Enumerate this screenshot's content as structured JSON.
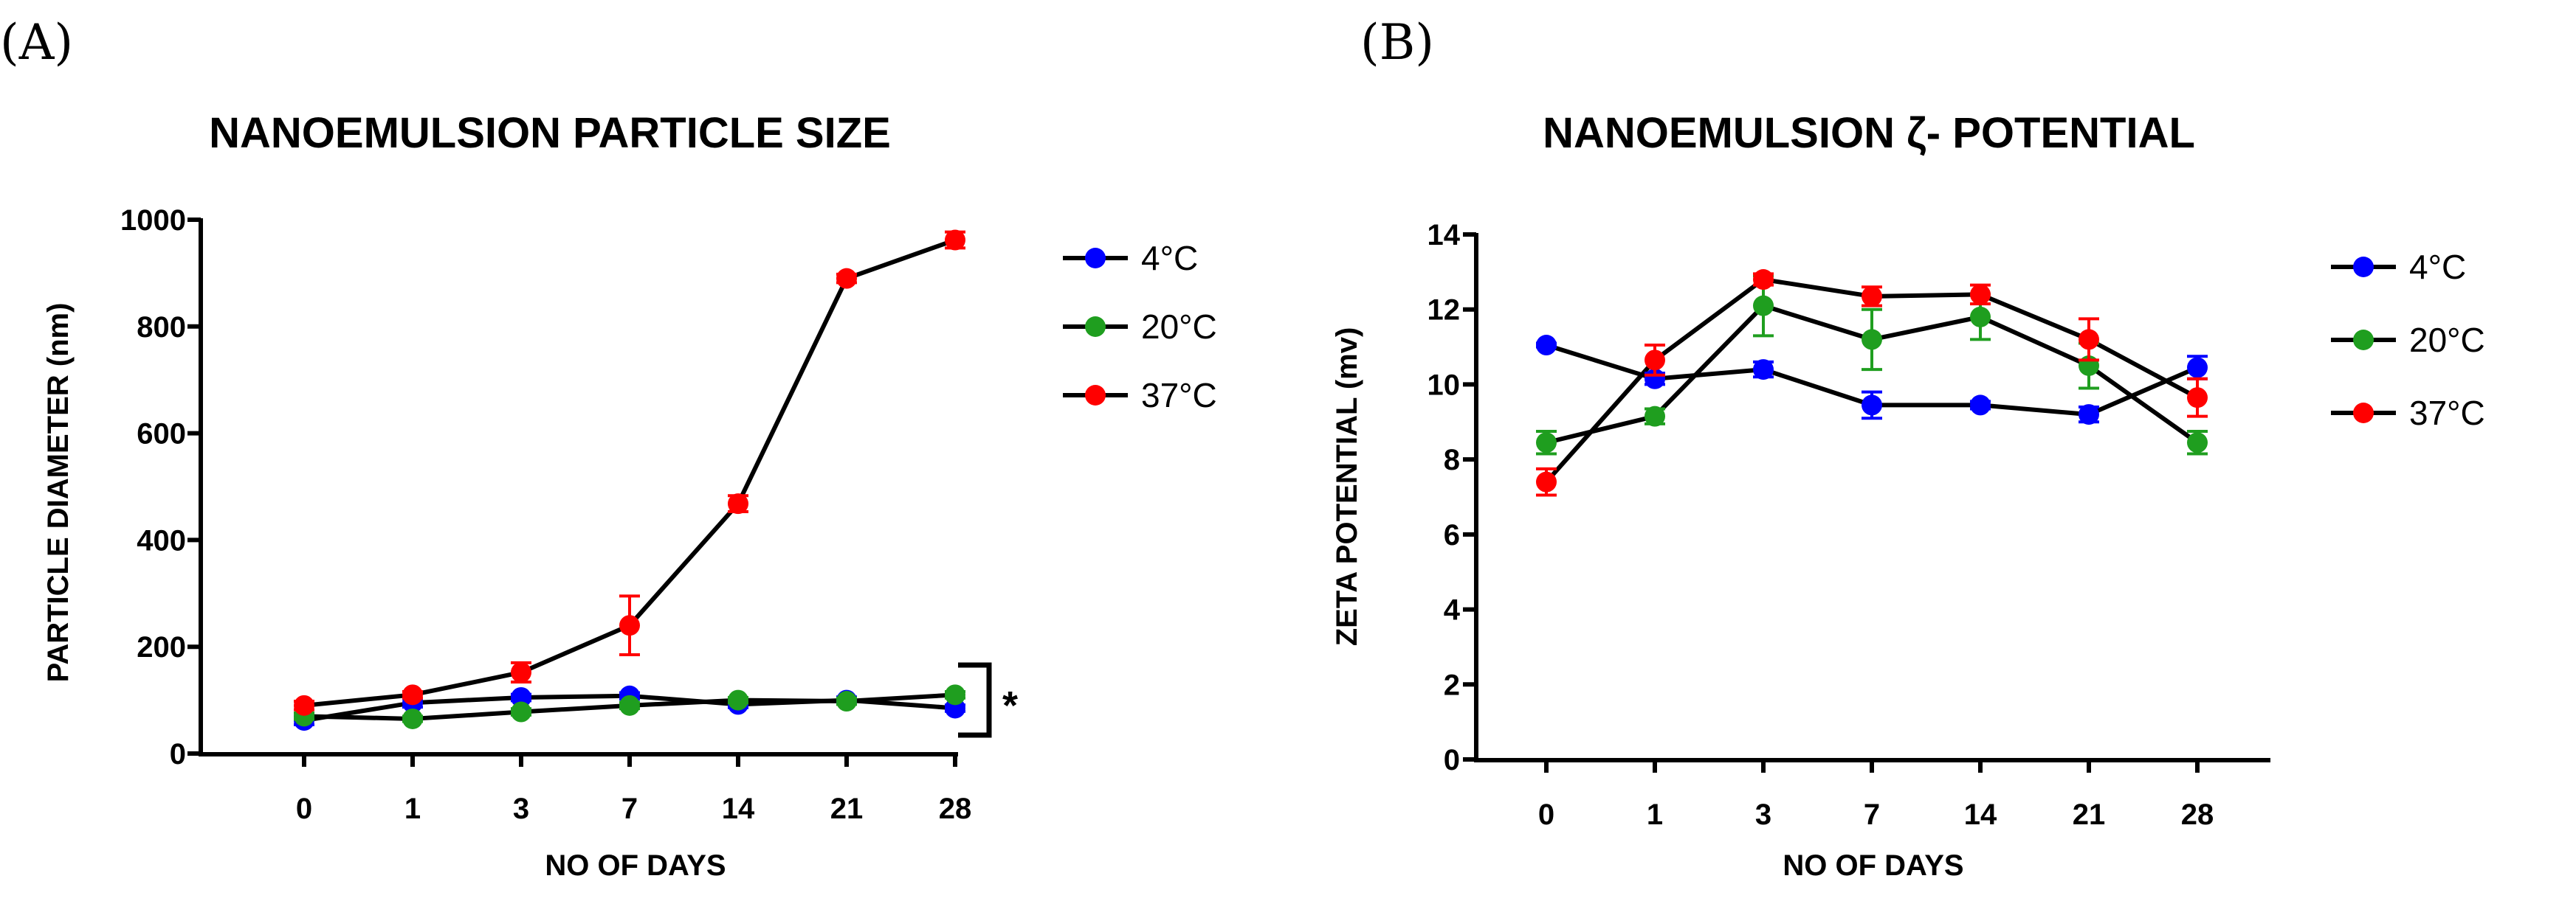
{
  "chart_data": [
    {
      "type": "line",
      "panel_label": "(A)",
      "title": "NANOEMULSION PARTICLE SIZE",
      "xlabel": "NO OF DAYS",
      "ylabel": "PARTICLE DIAMETER (nm)",
      "categories": [
        "0",
        "1",
        "3",
        "7",
        "14",
        "21",
        "28"
      ],
      "ylim": [
        0,
        1000
      ],
      "yticks": [
        0,
        200,
        400,
        600,
        800,
        1000
      ],
      "grid": false,
      "legend": "right",
      "series": [
        {
          "name": "4°C",
          "color": "#0000ff",
          "values": [
            62,
            95,
            105,
            108,
            92,
            100,
            85
          ],
          "errors": [
            8,
            8,
            6,
            6,
            6,
            6,
            6
          ]
        },
        {
          "name": "20°C",
          "color": "#1f9e1f",
          "values": [
            70,
            65,
            78,
            90,
            100,
            98,
            110
          ],
          "errors": [
            6,
            5,
            6,
            6,
            5,
            6,
            6
          ]
        },
        {
          "name": "37°C",
          "color": "#ff0000",
          "values": [
            90,
            110,
            152,
            240,
            468,
            890,
            962
          ],
          "errors": [
            8,
            6,
            18,
            55,
            15,
            8,
            15
          ]
        }
      ],
      "annotation": "*"
    },
    {
      "type": "line",
      "panel_label": "(B)",
      "title": "NANOEMULSION ζ- POTENTIAL",
      "xlabel": "NO OF DAYS",
      "ylabel": "ZETA POTENTIAL (mv)",
      "categories": [
        "0",
        "1",
        "3",
        "7",
        "14",
        "21",
        "28"
      ],
      "ylim": [
        0,
        14
      ],
      "yticks": [
        0,
        2,
        4,
        6,
        8,
        10,
        12,
        14
      ],
      "grid": false,
      "legend": "right",
      "series": [
        {
          "name": "4°C",
          "color": "#0000ff",
          "values": [
            11.05,
            10.15,
            10.4,
            9.45,
            9.45,
            9.2,
            10.45
          ],
          "errors": [
            0.05,
            0.15,
            0.2,
            0.35,
            0.1,
            0.2,
            0.3
          ]
        },
        {
          "name": "20°C",
          "color": "#1f9e1f",
          "values": [
            8.45,
            9.15,
            12.1,
            11.2,
            11.8,
            10.5,
            8.45
          ],
          "errors": [
            0.3,
            0.2,
            0.8,
            0.8,
            0.6,
            0.6,
            0.3
          ]
        },
        {
          "name": "37°C",
          "color": "#ff0000",
          "values": [
            7.4,
            10.65,
            12.8,
            12.35,
            12.4,
            11.2,
            9.65
          ],
          "errors": [
            0.35,
            0.4,
            0.15,
            0.25,
            0.25,
            0.55,
            0.5
          ]
        }
      ]
    }
  ]
}
